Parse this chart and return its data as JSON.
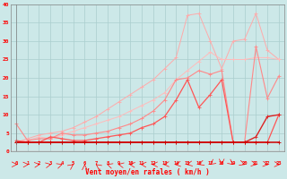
{
  "x": [
    0,
    1,
    2,
    3,
    4,
    5,
    6,
    7,
    8,
    9,
    10,
    11,
    12,
    13,
    14,
    15,
    16,
    17,
    18,
    19,
    20,
    21,
    22,
    23
  ],
  "line1_flat": [
    2.5,
    2.5,
    2.5,
    2.5,
    2.5,
    2.5,
    2.5,
    2.5,
    2.5,
    2.5,
    2.5,
    2.5,
    2.5,
    2.5,
    2.5,
    2.5,
    2.5,
    2.5,
    2.5,
    2.5,
    2.5,
    2.5,
    2.5,
    2.5
  ],
  "line2_low": [
    2.5,
    2.5,
    2.5,
    2.5,
    2.5,
    2.5,
    2.5,
    2.5,
    2.5,
    2.5,
    2.5,
    2.5,
    2.5,
    2.5,
    2.5,
    2.5,
    2.5,
    2.5,
    2.5,
    2.5,
    2.5,
    4.0,
    9.5,
    10.0
  ],
  "line3_med": [
    3.0,
    2.5,
    2.5,
    4.0,
    3.5,
    3.0,
    3.0,
    3.5,
    4.0,
    4.5,
    5.0,
    6.5,
    7.5,
    9.5,
    14.0,
    19.5,
    12.0,
    15.5,
    19.5,
    2.5,
    2.5,
    2.5,
    2.5,
    10.0
  ],
  "line4_upper": [
    7.5,
    3.0,
    3.5,
    3.5,
    5.0,
    4.5,
    4.5,
    5.0,
    5.5,
    6.5,
    7.5,
    9.0,
    11.0,
    14.0,
    19.5,
    20.0,
    22.0,
    21.0,
    22.0,
    2.5,
    2.5,
    28.5,
    14.5,
    20.5
  ],
  "line5_smooth": [
    2.5,
    3.0,
    4.0,
    3.5,
    4.5,
    5.5,
    6.5,
    7.5,
    8.5,
    9.5,
    11.0,
    12.5,
    14.0,
    16.0,
    19.5,
    22.0,
    24.5,
    27.0,
    25.0,
    25.0,
    25.0,
    25.5,
    25.5,
    25.0
  ],
  "line6_top": [
    2.5,
    3.5,
    4.5,
    5.0,
    5.5,
    6.5,
    8.0,
    9.5,
    11.5,
    13.5,
    15.5,
    17.5,
    19.5,
    22.5,
    25.5,
    37.0,
    37.5,
    30.0,
    22.5,
    30.0,
    30.5,
    37.5,
    27.5,
    25.0
  ],
  "xlabel": "Vent moyen/en rafales ( km/h )",
  "ylim": [
    0,
    40
  ],
  "xlim": [
    -0.5,
    23.5
  ],
  "yticks": [
    0,
    5,
    10,
    15,
    20,
    25,
    30,
    35,
    40
  ],
  "xticks": [
    0,
    1,
    2,
    3,
    4,
    5,
    6,
    7,
    8,
    9,
    10,
    11,
    12,
    13,
    14,
    15,
    16,
    17,
    18,
    19,
    20,
    21,
    22,
    23
  ],
  "background_color": "#cce8e8",
  "grid_color": "#aacece"
}
